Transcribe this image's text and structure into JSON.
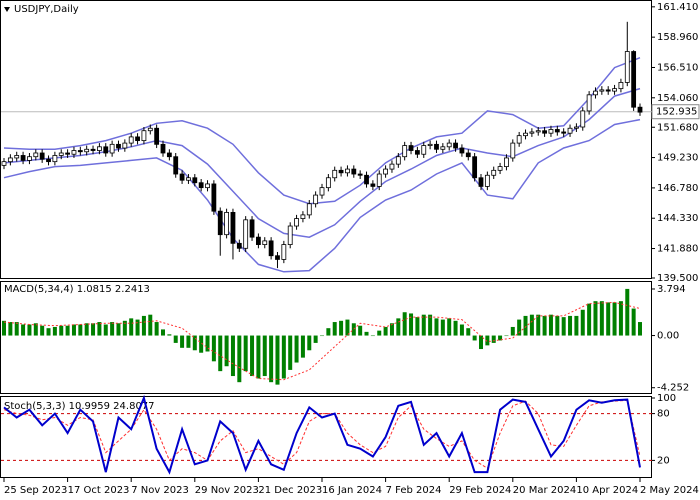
{
  "chart_data": [
    {
      "type": "candlestick",
      "title": "USDJPY,Daily",
      "xlim": [
        0,
        100
      ],
      "xticks": [
        {
          "value": 0,
          "label": "25 Sep 2023"
        },
        {
          "value": 10,
          "label": "17 Oct 2023"
        },
        {
          "value": 20,
          "label": "7 Nov 2023"
        },
        {
          "value": 30,
          "label": "29 Nov 2023"
        },
        {
          "value": 40,
          "label": "21 Dec 2023"
        },
        {
          "value": 50,
          "label": "16 Jan 2024"
        },
        {
          "value": 60,
          "label": "7 Feb 2024"
        },
        {
          "value": 70,
          "label": "29 Feb 2024"
        },
        {
          "value": 80,
          "label": "20 Mar 2024"
        },
        {
          "value": 90,
          "label": "10 Apr 2024"
        },
        {
          "value": 100,
          "label": "2 May 2024"
        }
      ],
      "ylim": [
        139.5,
        161.8
      ],
      "yticks": [
        {
          "value": 161.41,
          "label": "161.410"
        },
        {
          "value": 158.96,
          "label": "158.960"
        },
        {
          "value": 156.51,
          "label": "156.510"
        },
        {
          "value": 154.06,
          "label": "154.060"
        },
        {
          "value": 151.68,
          "label": "151.680"
        },
        {
          "value": 149.23,
          "label": "149.230"
        },
        {
          "value": 146.78,
          "label": "146.780"
        },
        {
          "value": 144.33,
          "label": "144.330"
        },
        {
          "value": 141.88,
          "label": "141.880"
        },
        {
          "value": 139.5,
          "label": "139.500"
        }
      ],
      "last_price": 152.935,
      "open": [
        148.6,
        148.9,
        149.2,
        149.4,
        149.0,
        149.3,
        149.6,
        149.1,
        148.9,
        149.4,
        149.6,
        149.5,
        149.8,
        149.7,
        149.9,
        149.8,
        150.1,
        149.6,
        150.3,
        150.0,
        150.4,
        150.9,
        150.6,
        151.4,
        151.6,
        150.3,
        149.6,
        149.3,
        147.9,
        147.4,
        147.6,
        147.2,
        146.8,
        147.1,
        144.9,
        143.0,
        144.8,
        142.3,
        141.9,
        144.2,
        142.8,
        142.2,
        142.5,
        141.3,
        141.0,
        142.2,
        143.7,
        144.3,
        144.6,
        145.5,
        146.2,
        146.8,
        147.6,
        148.2,
        148.0,
        148.3,
        147.9,
        147.8,
        147.1,
        146.9,
        147.9,
        148.3,
        148.7,
        149.3,
        150.2,
        149.8,
        149.5,
        150.2,
        150.3,
        149.9,
        150.1,
        150.4,
        150.0,
        149.6,
        149.3,
        147.6,
        146.9,
        147.8,
        148.2,
        148.5,
        149.2,
        150.4,
        151.0,
        151.2,
        151.3,
        151.4,
        151.2,
        151.5,
        151.3,
        151.2,
        151.6,
        151.7,
        153.0,
        154.3,
        154.6,
        154.7,
        154.6,
        154.8,
        155.3,
        157.8,
        153.3
      ],
      "high": [
        149.2,
        149.5,
        149.7,
        149.7,
        149.6,
        149.9,
        149.9,
        149.4,
        149.7,
        149.9,
        149.9,
        150.1,
        150.1,
        150.2,
        150.2,
        150.4,
        150.4,
        150.6,
        150.6,
        150.7,
        151.2,
        151.2,
        151.7,
        151.9,
        151.9,
        150.6,
        149.9,
        149.6,
        148.2,
        147.9,
        147.9,
        147.5,
        147.4,
        147.4,
        145.2,
        145.1,
        145.1,
        142.6,
        144.5,
        144.5,
        143.1,
        142.8,
        142.8,
        141.6,
        142.5,
        144.0,
        144.6,
        144.9,
        145.8,
        146.5,
        147.1,
        147.9,
        148.5,
        148.5,
        148.6,
        148.6,
        148.2,
        148.1,
        147.4,
        148.2,
        148.6,
        149.0,
        149.6,
        150.5,
        150.5,
        150.1,
        150.5,
        150.6,
        150.6,
        150.4,
        150.7,
        150.7,
        150.3,
        149.9,
        149.6,
        147.9,
        148.1,
        148.5,
        148.8,
        149.5,
        150.7,
        151.3,
        151.5,
        151.6,
        151.7,
        151.7,
        151.8,
        151.8,
        151.6,
        151.9,
        152.0,
        153.3,
        154.6,
        154.9,
        155.0,
        155.0,
        155.1,
        155.6,
        160.2,
        157.9,
        153.6
      ],
      "low": [
        148.3,
        148.6,
        148.9,
        148.7,
        148.7,
        149.0,
        148.8,
        148.6,
        148.6,
        149.1,
        149.2,
        149.2,
        149.4,
        149.4,
        149.5,
        149.5,
        149.3,
        149.3,
        149.7,
        149.7,
        150.1,
        150.3,
        150.3,
        151.1,
        150.0,
        149.3,
        149.0,
        147.6,
        147.1,
        147.1,
        146.9,
        146.5,
        146.5,
        144.6,
        141.3,
        142.7,
        141.0,
        141.6,
        141.6,
        142.5,
        141.9,
        141.9,
        141.0,
        140.3,
        140.7,
        141.9,
        143.4,
        144.0,
        144.3,
        145.2,
        145.9,
        146.5,
        147.3,
        147.7,
        147.7,
        147.6,
        147.5,
        146.8,
        146.6,
        146.6,
        147.6,
        148.0,
        148.4,
        149.0,
        149.5,
        149.2,
        149.2,
        149.9,
        149.6,
        149.6,
        149.8,
        149.7,
        149.3,
        149.0,
        147.3,
        146.6,
        146.6,
        147.5,
        147.9,
        148.2,
        148.9,
        150.1,
        150.7,
        150.9,
        151.0,
        150.9,
        150.9,
        151.0,
        150.9,
        150.9,
        151.3,
        151.4,
        152.7,
        154.0,
        154.3,
        154.3,
        154.3,
        154.5,
        155.0,
        153.0,
        152.6
      ],
      "close": [
        148.9,
        149.2,
        149.4,
        149.0,
        149.3,
        149.6,
        149.1,
        148.9,
        149.4,
        149.6,
        149.5,
        149.8,
        149.7,
        149.9,
        149.8,
        150.1,
        149.6,
        150.3,
        150.0,
        150.4,
        150.9,
        150.6,
        151.4,
        151.6,
        150.3,
        149.6,
        149.3,
        147.9,
        147.4,
        147.6,
        147.2,
        146.8,
        147.1,
        144.9,
        143.0,
        144.8,
        142.3,
        141.9,
        144.2,
        142.8,
        142.2,
        142.5,
        141.3,
        141.0,
        142.2,
        143.7,
        144.3,
        144.6,
        145.5,
        146.2,
        146.8,
        147.6,
        148.2,
        148.0,
        148.3,
        147.9,
        147.8,
        147.1,
        146.9,
        147.9,
        148.3,
        148.7,
        149.3,
        150.2,
        149.8,
        149.5,
        150.2,
        150.3,
        149.9,
        150.1,
        150.4,
        150.0,
        149.6,
        149.3,
        147.6,
        146.9,
        147.8,
        148.2,
        148.5,
        149.2,
        150.4,
        151.0,
        151.2,
        151.3,
        151.4,
        151.2,
        151.5,
        151.3,
        151.2,
        151.6,
        151.7,
        153.0,
        154.3,
        154.6,
        154.7,
        154.6,
        154.8,
        155.3,
        157.8,
        153.3,
        152.9
      ],
      "bands": {
        "color": "#6f6fdc",
        "x": [
          0,
          4,
          8,
          12,
          16,
          20,
          24,
          28,
          32,
          36,
          40,
          44,
          48,
          52,
          56,
          60,
          64,
          68,
          72,
          76,
          80,
          84,
          88,
          92,
          96,
          100
        ],
        "upper": [
          150.0,
          149.9,
          149.9,
          150.2,
          150.6,
          151.2,
          152.0,
          152.2,
          151.6,
          150.3,
          148.0,
          146.2,
          145.5,
          145.7,
          147.0,
          148.8,
          150.0,
          150.9,
          151.2,
          153.0,
          152.7,
          151.6,
          151.8,
          154.0,
          156.5,
          157.3
        ],
        "middle": [
          148.8,
          149.0,
          149.2,
          149.4,
          149.7,
          150.1,
          150.6,
          150.2,
          148.7,
          146.5,
          144.3,
          143.1,
          142.8,
          143.8,
          145.7,
          147.3,
          148.3,
          149.4,
          150.0,
          149.6,
          149.3,
          150.2,
          150.9,
          152.3,
          154.2,
          154.8
        ],
        "lower": [
          147.6,
          148.1,
          148.5,
          148.6,
          148.8,
          149.0,
          149.2,
          148.2,
          145.8,
          142.7,
          140.6,
          140.0,
          140.1,
          141.9,
          144.4,
          145.8,
          146.6,
          147.9,
          148.8,
          146.2,
          145.9,
          148.8,
          150.0,
          150.6,
          151.9,
          152.3
        ]
      }
    },
    {
      "type": "macd",
      "title": "MACD(5,34,4) 1.0815 2.2413",
      "xlim": [
        0,
        100
      ],
      "ylim": [
        -4.6,
        4.2
      ],
      "yticks": [
        3.794,
        {
          "value": 0,
          "label": "0.00"
        },
        -4.252
      ],
      "color": "#008000",
      "values": [
        1.2,
        1.1,
        1.1,
        0.9,
        0.9,
        1.0,
        0.8,
        0.6,
        0.7,
        0.8,
        0.8,
        0.9,
        0.9,
        1.0,
        1.0,
        1.1,
        0.9,
        1.1,
        1.0,
        1.2,
        1.4,
        1.3,
        1.6,
        1.7,
        1.1,
        0.5,
        0.1,
        -0.6,
        -1.0,
        -1.0,
        -1.2,
        -1.4,
        -1.3,
        -2.1,
        -2.9,
        -2.5,
        -3.3,
        -3.8,
        -2.9,
        -3.3,
        -3.5,
        -3.3,
        -3.8,
        -4.0,
        -3.5,
        -2.8,
        -2.2,
        -1.8,
        -1.2,
        -0.6,
        0.0,
        0.6,
        1.1,
        1.2,
        1.3,
        1.0,
        0.8,
        0.3,
        0.0,
        0.4,
        0.7,
        1.0,
        1.4,
        1.9,
        1.8,
        1.5,
        1.7,
        1.7,
        1.4,
        1.3,
        1.4,
        1.2,
        0.9,
        0.6,
        -0.4,
        -1.1,
        -0.8,
        -0.6,
        -0.4,
        0.0,
        0.7,
        1.3,
        1.6,
        1.7,
        1.7,
        1.6,
        1.7,
        1.6,
        1.5,
        1.6,
        1.6,
        2.1,
        2.6,
        2.8,
        2.8,
        2.7,
        2.7,
        2.8,
        3.8,
        2.2,
        1.1
      ],
      "signal": {
        "color": "#ff3030",
        "x": [
          0,
          4,
          8,
          12,
          16,
          20,
          24,
          28,
          32,
          36,
          40,
          44,
          48,
          52,
          56,
          60,
          64,
          68,
          72,
          76,
          80,
          84,
          88,
          92,
          96,
          100
        ],
        "values": [
          1.1,
          0.9,
          0.8,
          0.9,
          1.0,
          1.0,
          1.2,
          0.6,
          -1.0,
          -2.3,
          -3.5,
          -3.6,
          -2.8,
          -0.9,
          1.0,
          0.7,
          1.5,
          1.5,
          1.3,
          -0.5,
          -0.2,
          1.6,
          1.6,
          2.6,
          2.7,
          2.2
        ]
      }
    },
    {
      "type": "stochastic",
      "title": "Stoch(5,3,3) 10.9959 24.8077",
      "xlim": [
        0,
        100
      ],
      "ylim": [
        0,
        100
      ],
      "yticks": [
        100,
        80,
        20
      ],
      "levels": [
        80,
        20
      ],
      "level_color": "#cc0000",
      "main": {
        "color": "#0000cc",
        "x": [
          0,
          2,
          4,
          6,
          8,
          10,
          12,
          14,
          16,
          18,
          20,
          22,
          24,
          26,
          28,
          30,
          32,
          34,
          36,
          38,
          40,
          42,
          44,
          46,
          48,
          50,
          52,
          54,
          56,
          58,
          60,
          62,
          64,
          66,
          68,
          70,
          72,
          74,
          76,
          78,
          80,
          82,
          84,
          86,
          88,
          90,
          92,
          94,
          96,
          98,
          100
        ],
        "values": [
          88,
          75,
          85,
          65,
          80,
          55,
          85,
          70,
          5,
          75,
          60,
          100,
          35,
          5,
          60,
          15,
          20,
          70,
          55,
          8,
          45,
          15,
          8,
          55,
          88,
          75,
          80,
          40,
          35,
          25,
          50,
          90,
          95,
          40,
          55,
          25,
          55,
          5,
          5,
          85,
          98,
          95,
          60,
          25,
          45,
          85,
          97,
          94,
          97,
          98,
          11
        ]
      },
      "signal": {
        "color": "#ff3030",
        "x": [
          0,
          2,
          4,
          6,
          8,
          10,
          12,
          14,
          16,
          18,
          20,
          22,
          24,
          26,
          28,
          30,
          32,
          34,
          36,
          38,
          40,
          42,
          44,
          46,
          48,
          50,
          52,
          54,
          56,
          58,
          60,
          62,
          64,
          66,
          68,
          70,
          72,
          74,
          76,
          78,
          80,
          82,
          84,
          86,
          88,
          90,
          92,
          94,
          96,
          98,
          100
        ],
        "values": [
          85,
          80,
          78,
          72,
          75,
          65,
          75,
          72,
          30,
          45,
          60,
          85,
          60,
          20,
          35,
          30,
          20,
          45,
          58,
          30,
          35,
          25,
          15,
          30,
          70,
          80,
          80,
          55,
          40,
          30,
          38,
          75,
          90,
          60,
          48,
          38,
          45,
          20,
          10,
          55,
          90,
          96,
          80,
          40,
          38,
          65,
          90,
          95,
          96,
          97,
          25
        ]
      }
    }
  ]
}
